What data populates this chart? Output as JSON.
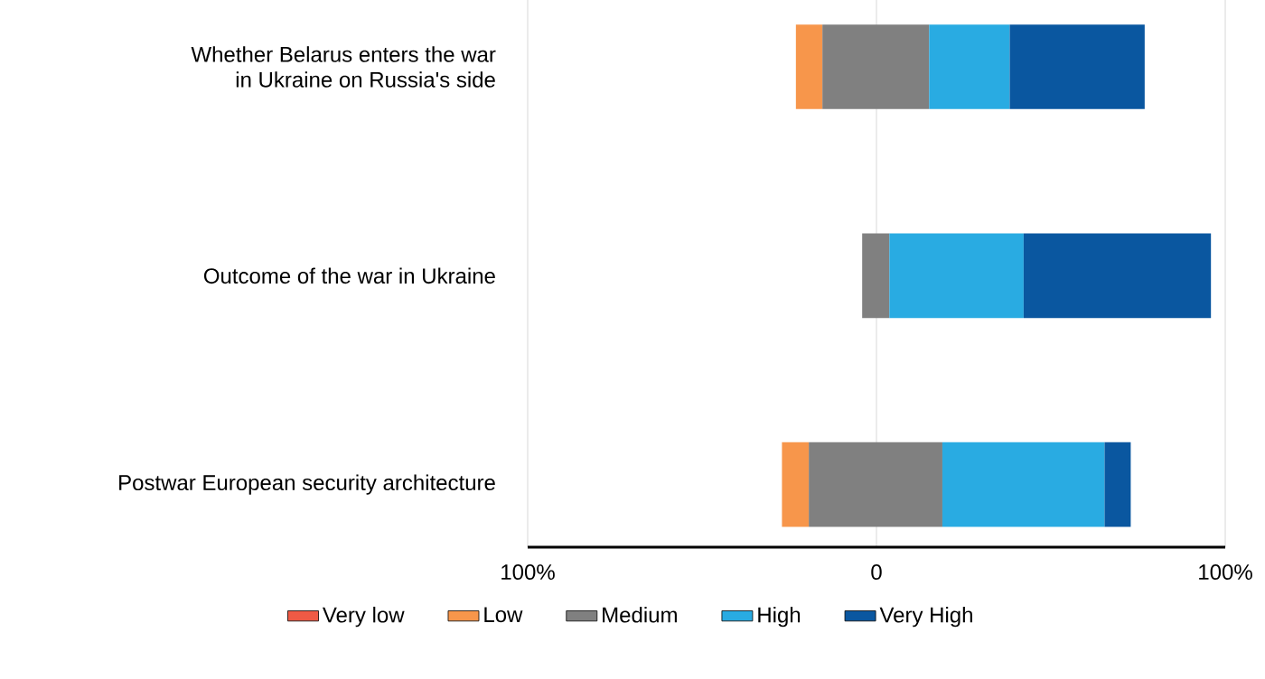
{
  "chart_data": {
    "type": "bar",
    "orientation": "horizontal",
    "categories": [
      "Whether Belarus enters the war in Ukraine on Russia's side",
      "Outcome of the war in Ukraine",
      "Postwar European security architecture"
    ],
    "series": [
      {
        "name": "Very low",
        "color": "#ef5a45",
        "values": [
          null,
          null,
          null
        ]
      },
      {
        "name": "Low",
        "color": "#f7964b",
        "base": [
          -23.1,
          null,
          -27.1
        ],
        "values": [
          7.6,
          null,
          7.7
        ]
      },
      {
        "name": "Medium",
        "color": "#808080",
        "base": [
          -15.5,
          -4.1,
          -19.4
        ],
        "values": [
          30.6,
          7.8,
          38.3
        ]
      },
      {
        "name": "High",
        "color": "#29abe2",
        "base": [
          15.1,
          3.7,
          18.9
        ],
        "values": [
          23.1,
          38.5,
          46.5
        ]
      },
      {
        "name": "Very High",
        "color": "#0a57a0",
        "base": [
          38.2,
          42.2,
          65.4
        ],
        "values": [
          38.7,
          53.7,
          7.5
        ]
      }
    ],
    "xlim": [
      -100,
      100
    ],
    "xticks": [
      {
        "value": -100,
        "label": "100%"
      },
      0,
      {
        "value": 100,
        "label": "100%"
      }
    ],
    "grid": "x",
    "legend": "bottom"
  }
}
